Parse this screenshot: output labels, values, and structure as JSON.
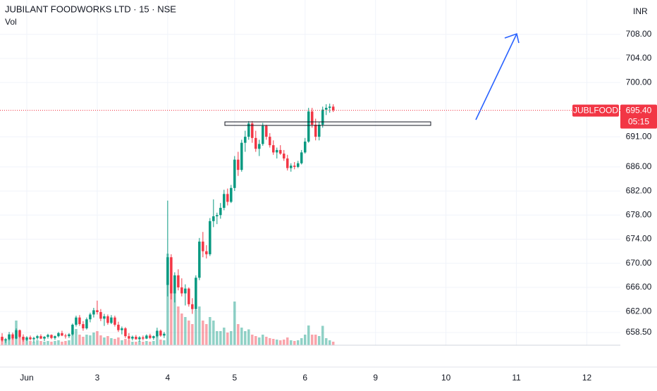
{
  "chart_data": {
    "type": "candlestick",
    "title": "JUBILANT FOODWORKS LTD · 15 · NSE",
    "volume_label": "Vol",
    "currency": "INR",
    "symbol": "JUBLFOOD",
    "last_price": 695.4,
    "last_price_label": "695.40",
    "countdown": "05:15",
    "up_color": "#089981",
    "down_color": "#f23645",
    "grid": true,
    "xlim": [
      -0.6,
      175.5
    ],
    "xticks": [
      {
        "value": 7,
        "label": "Jun"
      },
      {
        "value": 27,
        "label": "3"
      },
      {
        "value": 47,
        "label": "4"
      },
      {
        "value": 66,
        "label": "5"
      },
      {
        "value": 86,
        "label": "6"
      },
      {
        "value": 106,
        "label": "9"
      },
      {
        "value": 126,
        "label": "10"
      },
      {
        "value": 146,
        "label": "11"
      },
      {
        "value": 166,
        "label": "12"
      }
    ],
    "ylim": [
      656.4,
      713.7
    ],
    "yticks": [
      {
        "value": 708,
        "label": "708.00"
      },
      {
        "value": 704,
        "label": "704.00"
      },
      {
        "value": 700,
        "label": "700.00"
      },
      {
        "value": 691,
        "label": "691.00"
      },
      {
        "value": 686,
        "label": "686.00"
      },
      {
        "value": 682,
        "label": "682.00"
      },
      {
        "value": 678,
        "label": "678.00"
      },
      {
        "value": 674,
        "label": "674.00"
      },
      {
        "value": 670,
        "label": "670.00"
      },
      {
        "value": 666,
        "label": "666.00"
      },
      {
        "value": 662,
        "label": "662.00"
      },
      {
        "value": 658.5,
        "label": "658.50"
      }
    ],
    "vol_lim": [
      0,
      980
    ],
    "ohlc": [
      [
        657.8,
        658.4,
        657.0,
        657.2
      ],
      [
        657.2,
        657.6,
        656.8,
        657.4
      ],
      [
        657.4,
        658.6,
        657.2,
        658.2
      ],
      [
        658.2,
        658.5,
        657.3,
        657.5
      ],
      [
        657.5,
        659.2,
        657.4,
        658.9
      ],
      [
        658.9,
        659.0,
        657.6,
        657.8
      ],
      [
        657.8,
        658.2,
        657.0,
        657.3
      ],
      [
        657.3,
        657.9,
        657.1,
        657.7
      ],
      [
        657.7,
        658.0,
        657.2,
        657.4
      ],
      [
        657.4,
        657.8,
        656.9,
        657.6
      ],
      [
        657.6,
        658.1,
        657.3,
        657.9
      ],
      [
        657.9,
        658.2,
        657.4,
        657.5
      ],
      [
        657.5,
        657.9,
        657.1,
        657.8
      ],
      [
        657.8,
        658.3,
        657.5,
        658.1
      ],
      [
        658.1,
        658.2,
        657.4,
        657.6
      ],
      [
        657.6,
        658.0,
        657.3,
        657.9
      ],
      [
        657.9,
        658.6,
        657.7,
        658.4
      ],
      [
        658.4,
        658.8,
        657.9,
        658.0
      ],
      [
        658.0,
        658.3,
        657.5,
        657.9
      ],
      [
        657.9,
        658.4,
        657.6,
        658.2
      ],
      [
        658.2,
        660.0,
        658.0,
        659.8
      ],
      [
        659.8,
        661.3,
        659.5,
        661.0
      ],
      [
        661.0,
        661.4,
        659.6,
        659.9
      ],
      [
        659.9,
        660.4,
        658.8,
        659.2
      ],
      [
        659.2,
        661.0,
        659.0,
        660.7
      ],
      [
        660.7,
        661.8,
        660.2,
        661.5
      ],
      [
        661.5,
        662.6,
        661.0,
        662.2
      ],
      [
        662.2,
        663.8,
        661.5,
        661.9
      ],
      [
        661.9,
        662.4,
        660.4,
        660.8
      ],
      [
        660.8,
        661.6,
        659.6,
        661.2
      ],
      [
        661.2,
        661.5,
        659.8,
        660.1
      ],
      [
        660.1,
        661.4,
        659.9,
        661.0
      ],
      [
        661.0,
        661.3,
        659.5,
        659.8
      ],
      [
        659.8,
        660.3,
        658.6,
        658.9
      ],
      [
        658.9,
        659.5,
        658.2,
        659.2
      ],
      [
        659.2,
        659.4,
        657.6,
        657.9
      ],
      [
        657.9,
        658.4,
        657.2,
        657.5
      ],
      [
        657.5,
        658.0,
        657.2,
        657.8
      ],
      [
        657.8,
        658.1,
        657.3,
        657.4
      ],
      [
        657.4,
        657.9,
        657.0,
        657.7
      ],
      [
        657.7,
        658.0,
        657.2,
        657.5
      ],
      [
        657.5,
        658.2,
        657.4,
        658.0
      ],
      [
        658.0,
        658.3,
        657.4,
        657.6
      ],
      [
        657.6,
        658.0,
        657.3,
        657.9
      ],
      [
        657.9,
        659.3,
        657.7,
        658.8
      ],
      [
        658.8,
        659.0,
        657.8,
        658.0
      ],
      [
        658.0,
        658.6,
        657.6,
        658.3
      ],
      [
        666.4,
        680.4,
        664.5,
        671.0
      ],
      [
        671.0,
        671.5,
        664.0,
        665.0
      ],
      [
        665.0,
        668.5,
        663.5,
        668.0
      ],
      [
        668.0,
        669.0,
        665.5,
        666.0
      ],
      [
        666.0,
        667.5,
        664.5,
        665.0
      ],
      [
        665.0,
        666.5,
        663.0,
        665.8
      ],
      [
        665.8,
        666.0,
        662.8,
        663.2
      ],
      [
        663.2,
        664.2,
        661.6,
        662.4
      ],
      [
        662.4,
        668.0,
        662.2,
        667.6
      ],
      [
        667.6,
        674.2,
        667.2,
        673.6
      ],
      [
        673.6,
        675.2,
        671.0,
        672.0
      ],
      [
        672.0,
        673.0,
        670.8,
        671.5
      ],
      [
        671.5,
        677.5,
        671.2,
        677.0
      ],
      [
        677.0,
        680.6,
        676.0,
        677.8
      ],
      [
        677.8,
        678.4,
        676.5,
        678.0
      ],
      [
        678.0,
        680.0,
        677.4,
        679.2
      ],
      [
        679.2,
        682.2,
        678.8,
        681.5
      ],
      [
        681.5,
        682.4,
        679.6,
        680.2
      ],
      [
        680.2,
        683.0,
        680.0,
        682.5
      ],
      [
        682.5,
        687.8,
        682.0,
        687.2
      ],
      [
        687.2,
        688.5,
        684.5,
        685.5
      ],
      [
        685.5,
        690.5,
        685.2,
        690.0
      ],
      [
        690.0,
        692.0,
        688.5,
        691.0
      ],
      [
        691.0,
        693.6,
        690.5,
        693.2
      ],
      [
        693.2,
        693.6,
        690.0,
        690.8
      ],
      [
        690.8,
        692.0,
        688.5,
        689.0
      ],
      [
        689.0,
        690.5,
        687.8,
        689.8
      ],
      [
        689.8,
        693.3,
        689.5,
        692.8
      ],
      [
        692.8,
        693.0,
        690.5,
        691.0
      ],
      [
        691.0,
        691.6,
        689.2,
        689.6
      ],
      [
        689.6,
        690.4,
        688.0,
        688.4
      ],
      [
        688.4,
        689.2,
        687.4,
        688.8
      ],
      [
        688.8,
        689.6,
        688.0,
        688.2
      ],
      [
        688.2,
        688.8,
        687.0,
        687.4
      ],
      [
        687.4,
        688.0,
        685.4,
        685.8
      ],
      [
        685.8,
        686.6,
        685.2,
        686.2
      ],
      [
        686.2,
        686.8,
        685.6,
        686.0
      ],
      [
        686.0,
        687.0,
        685.8,
        686.6
      ],
      [
        686.6,
        688.8,
        686.4,
        688.4
      ],
      [
        688.4,
        690.8,
        688.2,
        690.2
      ],
      [
        690.2,
        695.8,
        690.0,
        695.2
      ],
      [
        695.2,
        695.8,
        692.5,
        693.0
      ],
      [
        693.0,
        694.0,
        690.4,
        691.0
      ],
      [
        691.0,
        693.5,
        690.4,
        693.0
      ],
      [
        693.0,
        696.0,
        692.5,
        695.5
      ],
      [
        695.5,
        696.4,
        694.6,
        695.8
      ],
      [
        695.8,
        696.5,
        695.0,
        696.0
      ],
      [
        696.0,
        696.4,
        695.1,
        695.4
      ]
    ],
    "volumes": [
      20,
      14,
      30,
      18,
      70,
      40,
      24,
      16,
      12,
      10,
      14,
      12,
      10,
      12,
      10,
      12,
      14,
      10,
      12,
      14,
      40,
      46,
      30,
      24,
      30,
      28,
      36,
      40,
      28,
      22,
      26,
      20,
      18,
      22,
      14,
      18,
      14,
      10,
      10,
      12,
      10,
      12,
      10,
      12,
      30,
      16,
      14,
      260,
      170,
      150,
      110,
      90,
      80,
      70,
      60,
      100,
      110,
      70,
      60,
      80,
      70,
      40,
      40,
      50,
      36,
      40,
      124,
      60,
      50,
      40,
      45,
      30,
      26,
      22,
      30,
      24,
      20,
      18,
      16,
      14,
      16,
      22,
      14,
      12,
      14,
      20,
      30,
      56,
      30,
      30,
      26,
      55,
      20,
      14,
      10
    ]
  }
}
